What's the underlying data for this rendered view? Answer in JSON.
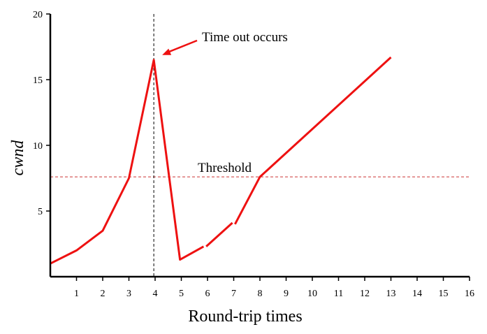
{
  "chart_data": {
    "type": "line",
    "title": "",
    "xlabel": "Round-trip times",
    "ylabel": "cwnd",
    "xlim": [
      0,
      16
    ],
    "ylim": [
      0,
      20
    ],
    "x_ticks": [
      "1",
      "2",
      "3",
      "4",
      "5",
      "6",
      "7",
      "8",
      "9",
      "10",
      "11",
      "12",
      "13",
      "14",
      "15",
      "16"
    ],
    "y_ticks": [
      "5",
      "10",
      "15",
      "20"
    ],
    "grid": false,
    "series": [
      {
        "color": "#ee1111",
        "segments": [
          [
            [
              0,
              1
            ],
            [
              1,
              2
            ],
            [
              2,
              3.5
            ],
            [
              3,
              7.5
            ],
            [
              3.95,
              16.5
            ],
            [
              4.95,
              1.3
            ],
            [
              5.85,
              2.3
            ]
          ],
          [
            [
              5.95,
              2.3
            ],
            [
              6.95,
              4.1
            ]
          ],
          [
            [
              7.05,
              4
            ],
            [
              8,
              7.6
            ],
            [
              13,
              16.7
            ]
          ]
        ]
      }
    ],
    "threshold": {
      "y": 7.6,
      "label": "Threshold",
      "color": "#cc3333"
    },
    "timeout_marker": {
      "x": 3.95,
      "color": "#000000"
    },
    "annotation": {
      "text": "Time out occurs",
      "arrow_color": "#ee1111"
    }
  }
}
